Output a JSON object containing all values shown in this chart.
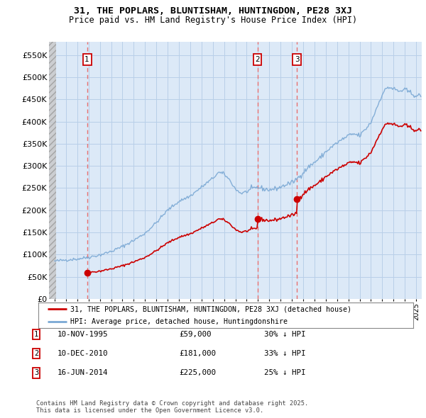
{
  "title_line1": "31, THE POPLARS, BLUNTISHAM, HUNTINGDON, PE28 3XJ",
  "title_line2": "Price paid vs. HM Land Registry's House Price Index (HPI)",
  "ylim": [
    0,
    580000
  ],
  "yticks": [
    0,
    50000,
    100000,
    150000,
    200000,
    250000,
    300000,
    350000,
    400000,
    450000,
    500000,
    550000
  ],
  "ytick_labels": [
    "£0",
    "£50K",
    "£100K",
    "£150K",
    "£200K",
    "£250K",
    "£300K",
    "£350K",
    "£400K",
    "£450K",
    "£500K",
    "£550K"
  ],
  "sale_dates_num": [
    1995.87,
    2010.95,
    2014.46
  ],
  "sale_prices": [
    59000,
    181000,
    225000
  ],
  "sale_labels": [
    "1",
    "2",
    "3"
  ],
  "vline_color": "#e87070",
  "sale_marker_color": "#cc0000",
  "hpi_color": "#7aa8d4",
  "price_color": "#cc0000",
  "legend_text_red": "31, THE POPLARS, BLUNTISHAM, HUNTINGDON, PE28 3XJ (detached house)",
  "legend_text_blue": "HPI: Average price, detached house, Huntingdonshire",
  "table_data": [
    [
      "1",
      "10-NOV-1995",
      "£59,000",
      "30% ↓ HPI"
    ],
    [
      "2",
      "10-DEC-2010",
      "£181,000",
      "33% ↓ HPI"
    ],
    [
      "3",
      "16-JUN-2014",
      "£225,000",
      "25% ↓ HPI"
    ]
  ],
  "footnote": "Contains HM Land Registry data © Crown copyright and database right 2025.\nThis data is licensed under the Open Government Licence v3.0.",
  "bg_color": "#ffffff",
  "chart_bg": "#dce9f7",
  "grid_color": "#b8cfe8",
  "hatch_color": "#c0c0c0"
}
